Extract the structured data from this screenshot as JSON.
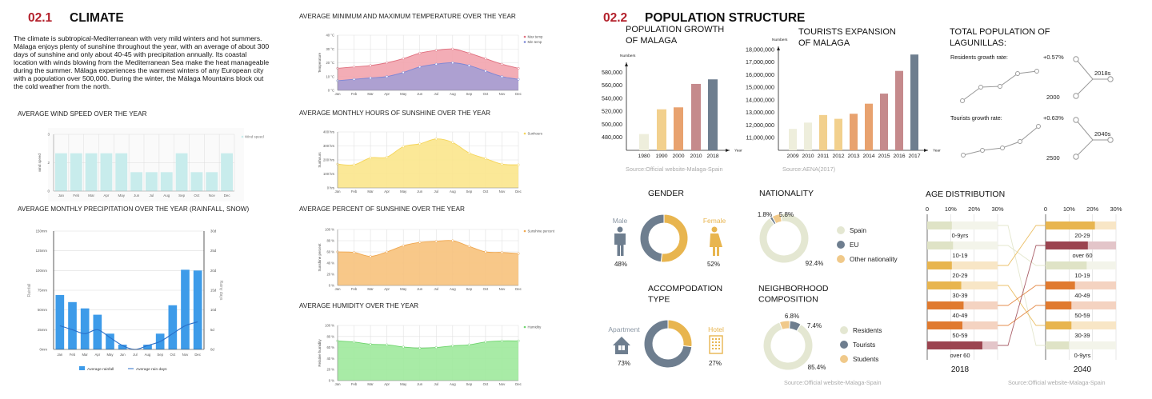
{
  "climate": {
    "number": "02.1",
    "title": "CLIMATE",
    "paragraph": "The climate is subtropical-Mediterranean with very mild winters and hot summers. Málaga enjoys plenty of sunshine throughout the year, with an average of about 300 days of sunshine and only about 40-45 with precipitation annually. Its coastal location with winds blowing from the Mediterranean Sea make the heat manageable during the summer. Málaga experiences the warmest winters of any European city with a population over 500,000. During the winter, the Málaga Mountains block out the cold weather from the north."
  },
  "population": {
    "number": "02.2",
    "title": "POPULATION STRUCTURE"
  },
  "colors": {
    "accent_red": "#b3202b",
    "slate": "#6e7e8f",
    "gold": "#e8b54f",
    "cream": "#e4e7d2",
    "peach": "#f0c98a"
  },
  "chart_data": [
    {
      "type": "bar",
      "title": "AVERAGE WIND SPEED OVER THE YEAR",
      "categories": [
        "Jan",
        "Feb",
        "Mar",
        "Apr",
        "May",
        "Jun",
        "Jul",
        "Aug",
        "Sep",
        "Oct",
        "Nov",
        "Dec"
      ],
      "series": [
        {
          "name": "Wind speed",
          "values": [
            2,
            2,
            2,
            2,
            2,
            1,
            1,
            1,
            2,
            1,
            1,
            2
          ],
          "color": "#c8ecec"
        }
      ],
      "ylabel": "wind speed",
      "ylim": [
        0,
        3
      ],
      "yticks": [
        0,
        1.5,
        3
      ],
      "ytick_labels": [
        "0",
        "2",
        "3"
      ],
      "grid": true,
      "legend": "top-right"
    },
    {
      "type": "bar+line",
      "title": "AVERAGE MONTHLY PRECIPITATION OVER THE YEAR (RAINFALL, SNOW)",
      "categories": [
        "Jan",
        "Feb",
        "Mar",
        "Apr",
        "May",
        "Jun",
        "Jul",
        "Aug",
        "Sep",
        "Oct",
        "Nov",
        "Dec"
      ],
      "series": [
        {
          "name": "Average rainfall",
          "type": "bar",
          "axis": "left",
          "values": [
            69,
            60,
            52,
            44,
            20,
            6,
            0,
            6,
            20,
            56,
            101,
            100
          ],
          "color": "#3d9be9"
        },
        {
          "name": "Average rain days",
          "type": "line",
          "axis": "right",
          "values": [
            6,
            5,
            4,
            5,
            3,
            1,
            0,
            1,
            2,
            4,
            6,
            7
          ],
          "color": "#2a6fc9"
        }
      ],
      "ylabel": "Rainfall",
      "y2label": "Rainy days",
      "ylim": [
        0,
        150
      ],
      "y2lim": [
        0,
        30
      ],
      "ytick_labels": [
        "0mm",
        "25mm",
        "50mm",
        "75mm",
        "100mm",
        "125mm",
        "150mm"
      ],
      "y2tick_labels": [
        "0d",
        "5d",
        "10d",
        "15d",
        "20d",
        "25d",
        "30d"
      ],
      "grid": true,
      "legend": "bottom"
    },
    {
      "type": "area",
      "title": "AVERAGE MINIMUM AND MAXIMUM TEMPERATURE OVER THE YEAR",
      "categories": [
        "Jan",
        "Feb",
        "Mar",
        "Apr",
        "May",
        "Jun",
        "Jul",
        "Aug",
        "Sep",
        "Oct",
        "Nov",
        "Dec"
      ],
      "series": [
        {
          "name": "Max temp",
          "values": [
            16,
            17,
            18,
            20,
            23,
            27,
            29,
            30,
            27,
            23,
            19,
            16
          ],
          "color": "#e0707f",
          "fill": "#f2a4ae"
        },
        {
          "name": "Min temp",
          "values": [
            7,
            8,
            9,
            10,
            13,
            17,
            19,
            20,
            18,
            14,
            10,
            8
          ],
          "color": "#7b86d6",
          "fill": "#a59ed4"
        }
      ],
      "ylabel": "Temperature",
      "ylim": [
        0,
        40
      ],
      "ytick_labels": [
        "0 °C",
        "10 °C",
        "20 °C",
        "30 °C",
        "40 °C"
      ],
      "grid": true,
      "legend": "top-right"
    },
    {
      "type": "area",
      "title": "AVERAGE MONTHLY HOURS OF SUNSHINE OVER THE YEAR",
      "categories": [
        "Jan",
        "Feb",
        "Mar",
        "Apr",
        "May",
        "Jun",
        "Jul",
        "Aug",
        "Sep",
        "Oct",
        "Nov",
        "Dec"
      ],
      "series": [
        {
          "name": "Sunhours",
          "values": [
            170,
            165,
            215,
            220,
            295,
            315,
            350,
            325,
            250,
            210,
            170,
            165
          ],
          "color": "#f5d55a",
          "fill": "#fbe58c"
        }
      ],
      "ylabel": "Sunhours",
      "ylim": [
        0,
        400
      ],
      "ytick_labels": [
        "0 hrs",
        "100 hrs",
        "200 hrs",
        "300 hrs",
        "400 hrs"
      ],
      "grid": true,
      "legend": "top-right"
    },
    {
      "type": "area",
      "title": "AVERAGE PERCENT OF SUNSHINE OVER THE YEAR",
      "categories": [
        "Jan",
        "Feb",
        "Mar",
        "Apr",
        "May",
        "Jun",
        "Jul",
        "Aug",
        "Sep",
        "Oct",
        "Nov",
        "Dec"
      ],
      "series": [
        {
          "name": "Sunshine percent",
          "values": [
            60,
            59,
            52,
            60,
            71,
            77,
            79,
            80,
            70,
            60,
            59,
            57
          ],
          "color": "#f0a850",
          "fill": "#f7c27c"
        }
      ],
      "ylabel": "Sunshine percent",
      "ylim": [
        0,
        100
      ],
      "ytick_labels": [
        "0 %",
        "20 %",
        "40 %",
        "60 %",
        "80 %",
        "100 %"
      ],
      "grid": true,
      "legend": "top-right"
    },
    {
      "type": "area",
      "title": "AVERAGE HUMIDITY OVER THE YEAR",
      "categories": [
        "Jan",
        "Feb",
        "Mar",
        "Apr",
        "May",
        "Jun",
        "Jul",
        "Aug",
        "Sep",
        "Oct",
        "Nov",
        "Dec"
      ],
      "series": [
        {
          "name": "Humidity",
          "values": [
            72,
            70,
            66,
            65,
            61,
            59,
            60,
            63,
            65,
            70,
            72,
            72
          ],
          "color": "#6fd56e",
          "fill": "#9ee99c"
        }
      ],
      "ylabel": "Relative humidity",
      "ylim": [
        0,
        100
      ],
      "ytick_labels": [
        "0 %",
        "20 %",
        "40 %",
        "60 %",
        "80 %",
        "100 %"
      ],
      "grid": true,
      "legend": "top-right"
    },
    {
      "type": "bar",
      "title_lines": [
        "POPULATION GROWTH",
        "OF MALAGA"
      ],
      "categories": [
        "1980",
        "1990",
        "2000",
        "2010",
        "2018"
      ],
      "values": [
        485000,
        523000,
        526000,
        562000,
        569000
      ],
      "colors": [
        "#eeeedc",
        "#f2d08d",
        "#e8a26f",
        "#c58a8c",
        "#6e7e8f"
      ],
      "ylabel": "Numbers",
      "xlabel": "Year",
      "ylim": [
        460000,
        600000
      ],
      "yticks": [
        480000,
        500000,
        520000,
        540000,
        560000,
        580000
      ],
      "ytick_labels": [
        "480,000",
        "500,000",
        "520,000",
        "540,000",
        "560,000",
        "580,000"
      ],
      "grid": false,
      "source": "Source:Official website-Malaga-Spain"
    },
    {
      "type": "bar",
      "title_lines": [
        "TOURISTS EXPANSION",
        "OF MALAGA"
      ],
      "categories": [
        "2009",
        "2010",
        "2011",
        "2012",
        "2013",
        "2014",
        "2015",
        "2016",
        "2017"
      ],
      "values": [
        11700000,
        12200000,
        12800000,
        12500000,
        12900000,
        13700000,
        14500000,
        16300000,
        17600000
      ],
      "colors": [
        "#eeeedc",
        "#eeeedc",
        "#f2d08d",
        "#f2d08d",
        "#e8a26f",
        "#e8a26f",
        "#c58a8c",
        "#c58a8c",
        "#6e7e8f"
      ],
      "ylabel": "Numbers",
      "xlabel": "Year",
      "ylim": [
        10000000,
        18500000
      ],
      "yticks": [
        11000000,
        12000000,
        13000000,
        14000000,
        15000000,
        16000000,
        17000000,
        18000000
      ],
      "ytick_labels": [
        "11,000,000",
        "12,000,000",
        "13,000,000",
        "14,000,000",
        "15,000,000",
        "16,000,000",
        "17,000,000",
        "18,000,000"
      ],
      "grid": false,
      "source": "Source:AENA(2017)"
    },
    {
      "type": "line",
      "title_lines": [
        "TOTAL POPULATION OF",
        "LAGUNILLAS:"
      ],
      "residents": {
        "label": "Residents growth rate:",
        "rate": "+0.57%",
        "from": "2000",
        "to": "2018s"
      },
      "tourists": {
        "label": "Tourists growth rate:",
        "rate": "+0.63%",
        "from": "2500",
        "to": "2040s"
      }
    },
    {
      "type": "pie",
      "title_lines": [
        "GENDER"
      ],
      "slices": [
        {
          "label": "Male",
          "value": 48,
          "color": "#6e7e8f"
        },
        {
          "label": "Female",
          "value": 52,
          "color": "#e8b54f"
        }
      ]
    },
    {
      "type": "pie",
      "title_lines": [
        "NATIONALITY"
      ],
      "slices": [
        {
          "label": "Spain",
          "value": 92.4,
          "color": "#e4e7d2"
        },
        {
          "label": "EU",
          "value": 1.8,
          "color": "#6e7e8f"
        },
        {
          "label": "Other nationality",
          "value": 5.8,
          "color": "#f0c98a"
        }
      ],
      "legend": "right"
    },
    {
      "type": "pie",
      "title_lines": [
        "ACCOMPODATION",
        "TYPE"
      ],
      "slices": [
        {
          "label": "Apartment",
          "value": 73,
          "color": "#6e7e8f"
        },
        {
          "label": "Hotel",
          "value": 27,
          "color": "#e8b54f"
        }
      ]
    },
    {
      "type": "pie",
      "title_lines": [
        "NEIGHBORHOOD",
        "COMPOSITION"
      ],
      "slices": [
        {
          "label": "Residents",
          "value": 85.4,
          "color": "#e4e7d2"
        },
        {
          "label": "Tourists",
          "value": 7.4,
          "color": "#6e7e8f"
        },
        {
          "label": "Students",
          "value": 6.8,
          "color": "#f0c98a"
        }
      ],
      "legend": "right",
      "source": "Source:Official website-Malaga-Spain"
    },
    {
      "type": "bar",
      "title": "AGE DISTRIBUTION",
      "xlim": [
        0,
        30
      ],
      "xticks": [
        0,
        10,
        20,
        30
      ],
      "xtick_labels": [
        "0",
        "10%",
        "20%",
        "30%"
      ],
      "groups": [
        {
          "year": "2018",
          "rows": [
            {
              "label": "0-9yrs",
              "value": 10.5,
              "color": "#dfe3c6",
              "bg": "#f3f4ea"
            },
            {
              "label": "10-19",
              "value": 11,
              "color": "#dfe3c6",
              "bg": "#f3f4ea"
            },
            {
              "label": "20-29",
              "value": 10.5,
              "color": "#e8b54f",
              "bg": "#f8e6c6"
            },
            {
              "label": "30-39",
              "value": 14.5,
              "color": "#e8b54f",
              "bg": "#f8e6c6"
            },
            {
              "label": "40-49",
              "value": 15.5,
              "color": "#e07a2f",
              "bg": "#f4d3c1"
            },
            {
              "label": "50-59",
              "value": 15,
              "color": "#e07a2f",
              "bg": "#f4d3c1"
            },
            {
              "label": "over 60",
              "value": 23.5,
              "color": "#9b4450",
              "bg": "#e3c5c9"
            }
          ]
        },
        {
          "year": "2040",
          "rows": [
            {
              "label": "20-29",
              "value": 21,
              "color": "#e8b54f",
              "bg": "#f8e6c6"
            },
            {
              "label": "over 60",
              "value": 18,
              "color": "#9b4450",
              "bg": "#e3c5c9"
            },
            {
              "label": "10-19",
              "value": 17.5,
              "color": "#dfe3c6",
              "bg": "#f3f4ea"
            },
            {
              "label": "40-49",
              "value": 12.5,
              "color": "#e07a2f",
              "bg": "#f4d3c1"
            },
            {
              "label": "50-59",
              "value": 11,
              "color": "#e07a2f",
              "bg": "#f4d3c1"
            },
            {
              "label": "30-39",
              "value": 11,
              "color": "#e8b54f",
              "bg": "#f8e6c6"
            },
            {
              "label": "0-9yrs",
              "value": 10,
              "color": "#dfe3c6",
              "bg": "#f3f4ea"
            }
          ]
        }
      ],
      "source": "Source:Official website-Malaga-Spain"
    }
  ]
}
